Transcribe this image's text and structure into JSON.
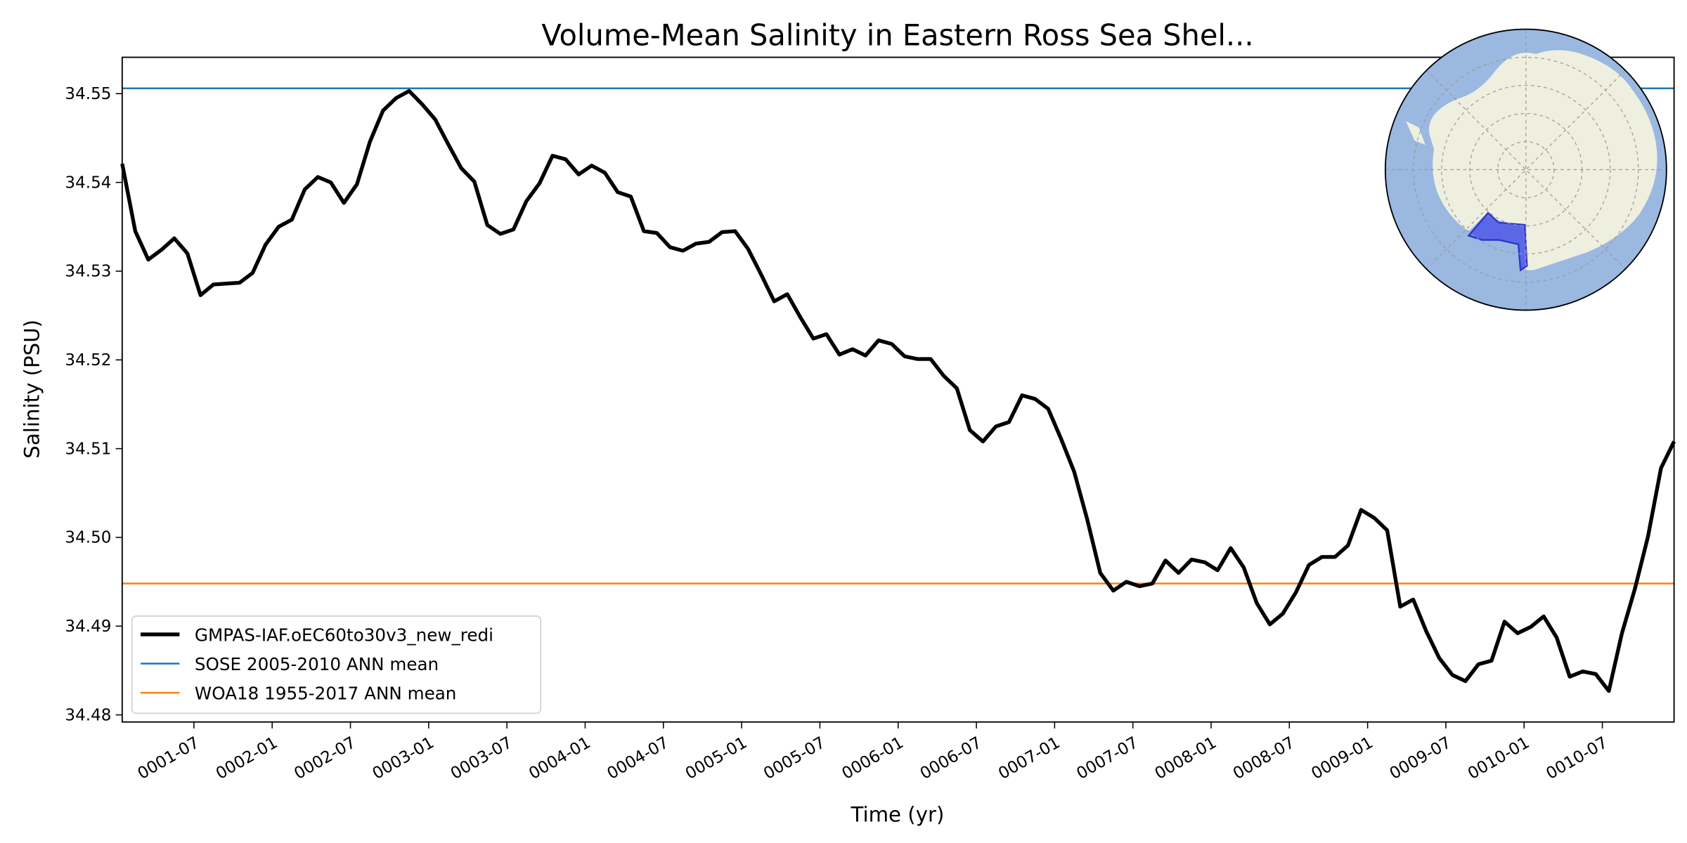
{
  "chart_data": {
    "type": "line",
    "title": "Volume-Mean Salinity in Eastern Ross Sea Shel...",
    "xlabel": "Time (yr)",
    "ylabel": "Salinity (PSU)",
    "xlim_months": [
      0,
      119
    ],
    "ylim": [
      34.4792,
      34.5541
    ],
    "yticks": [
      34.48,
      34.49,
      34.5,
      34.51,
      34.52,
      34.53,
      34.54,
      34.55
    ],
    "ytick_labels": [
      "34.48",
      "34.49",
      "34.50",
      "34.51",
      "34.52",
      "34.53",
      "34.54",
      "34.55"
    ],
    "xtick_months": [
      5.5,
      11.5,
      17.5,
      23.5,
      29.5,
      35.5,
      41.5,
      47.5,
      53.5,
      59.5,
      65.5,
      71.5,
      77.5,
      83.5,
      89.5,
      95.5,
      101.5,
      107.5,
      113.5
    ],
    "xtick_labels": [
      "0001-07",
      "0002-01",
      "0002-07",
      "0003-01",
      "0003-07",
      "0004-01",
      "0004-07",
      "0005-01",
      "0005-07",
      "0006-01",
      "0006-07",
      "0007-01",
      "0007-07",
      "0008-01",
      "0008-07",
      "0009-01",
      "0009-07",
      "0010-01",
      "0010-07"
    ],
    "series": [
      {
        "name": "GMPAS-IAF.oEC60to30v3_new_redi",
        "color": "#000000",
        "values": [
          34.5421,
          34.5345,
          34.5313,
          34.5324,
          34.5337,
          34.532,
          34.5273,
          34.5285,
          34.5286,
          34.5287,
          34.5298,
          34.533,
          34.535,
          34.5358,
          34.5392,
          34.5406,
          34.54,
          34.5377,
          34.5398,
          34.5446,
          34.5481,
          34.5495,
          34.5503,
          34.5488,
          34.5471,
          34.5443,
          34.5416,
          34.5401,
          34.5352,
          34.5342,
          34.5347,
          34.5379,
          34.5399,
          34.543,
          34.5426,
          34.5409,
          34.5419,
          34.5411,
          34.5389,
          34.5384,
          34.5345,
          34.5343,
          34.5327,
          34.5323,
          34.5331,
          34.5333,
          34.5344,
          34.5345,
          34.5325,
          34.5296,
          34.5266,
          34.5274,
          34.5248,
          34.5224,
          34.5229,
          34.5206,
          34.5212,
          34.5205,
          34.5222,
          34.5218,
          34.5204,
          34.5201,
          34.5201,
          34.5182,
          34.5168,
          34.5121,
          34.5108,
          34.5125,
          34.513,
          34.516,
          34.5156,
          34.5145,
          34.5111,
          34.5074,
          34.502,
          34.496,
          34.494,
          34.495,
          34.4945,
          34.4948,
          34.4974,
          34.496,
          34.4975,
          34.4972,
          34.4963,
          34.4988,
          34.4966,
          34.4926,
          34.4902,
          34.4914,
          34.4938,
          34.4969,
          34.4978,
          34.4978,
          34.4991,
          34.5031,
          34.5022,
          34.5008,
          34.4922,
          34.493,
          34.4894,
          34.4864,
          34.4845,
          34.4838,
          34.4857,
          34.4861,
          34.4905,
          34.4892,
          34.4899,
          34.4911,
          34.4887,
          34.4843,
          34.4849,
          34.4846,
          34.4827,
          34.4892,
          34.4942,
          34.5001,
          34.5078,
          34.5108
        ]
      },
      {
        "name": "SOSE 2005-2010 ANN mean",
        "color": "#1f77b4",
        "constant": 34.5506
      },
      {
        "name": "WOA18 1955-2017 ANN mean",
        "color": "#ff7f0e",
        "constant": 34.4948
      }
    ],
    "legend_location": "lower-left",
    "inset": "south-polar-map",
    "inset_colors": {
      "ocean": "#9ab8e0",
      "land": "#efefdf",
      "region": "#4f59e8"
    }
  }
}
